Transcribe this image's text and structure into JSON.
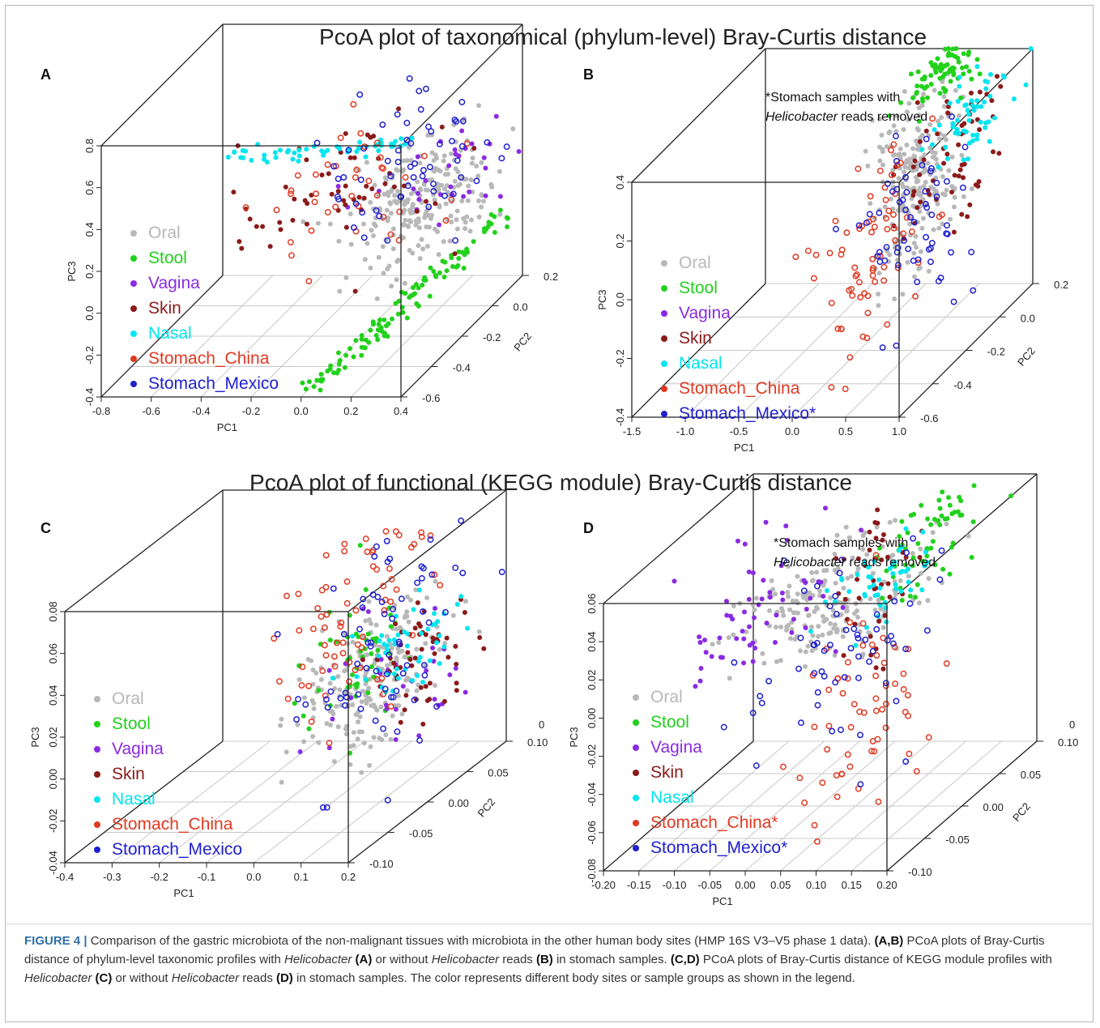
{
  "titles": {
    "top": "PcoA plot of taxonomical (phylum-level) Bray-Curtis distance",
    "bottom": "PcoA plot of functional (KEGG module) Bray-Curtis distance"
  },
  "colors": {
    "Oral": "#b8b8b8",
    "Stool": "#22d11c",
    "Vagina": "#8a2be2",
    "Skin": "#8b1a1a",
    "Nasal": "#00e5ee",
    "Stomach_China": "#e03a22",
    "Stomach_Mexico": "#2020d0",
    "frame": "#222222",
    "grid": "#c8c8c8"
  },
  "caption": {
    "figure_label": "FIGURE 4 |",
    "p1": " Comparison of the gastric microbiota of the non-malignant tissues with microbiota in the other human body sites (HMP 16S V3–V5 phase 1 data). ",
    "p1b": "(A,B)",
    "p2": " PCoA plots of Bray-Curtis distance of phylum-level taxonomic profiles with ",
    "helico1": "Helicobacter",
    "p3": " ",
    "pA": "(A)",
    "p4": " or without ",
    "helico2": "Helicobacter",
    "p5": " reads ",
    "pB": "(B)",
    "p6": " in stomach samples. ",
    "pCD": "(C,D)",
    "p7": " PCoA plots of Bray-Curtis distance of KEGG module profiles with ",
    "helico3": "Helicobacter",
    "p8": " ",
    "pC": "(C)",
    "p9": " or without ",
    "helico4": "Helicobacter",
    "p10": " reads ",
    "pD": "(D)",
    "p11": " in stomach samples. The color represents different body sites or sample groups as shown in the legend."
  },
  "chart_data": [
    {
      "panel": "A",
      "type": "scatter",
      "projection": "3d",
      "xlabel": "PC1",
      "ylabel": "PC2",
      "zlabel": "PC3",
      "x_ticks": [
        "-0.8",
        "-0.6",
        "-0.4",
        "-0.2",
        "0.0",
        "0.2",
        "0.4"
      ],
      "y_ticks": [
        "-0.6",
        "-0.4",
        "-0.2",
        "0.0",
        "0.2"
      ],
      "z_ticks": [
        "-0.4",
        "-0.2",
        "0.0",
        "0.2",
        "0.4",
        "0.6",
        "0.8"
      ],
      "xlim": [
        -0.8,
        0.4
      ],
      "ylim": [
        -0.6,
        0.2
      ],
      "zlim": [
        -0.4,
        0.8
      ],
      "legend": [
        {
          "name": "Oral",
          "marker": "filled"
        },
        {
          "name": "Stool",
          "marker": "filled"
        },
        {
          "name": "Vagina",
          "marker": "filled"
        },
        {
          "name": "Skin",
          "marker": "filled"
        },
        {
          "name": "Nasal",
          "marker": "filled"
        },
        {
          "name": "Stomach_China",
          "marker": "filled"
        },
        {
          "name": "Stomach_Mexico",
          "marker": "filled"
        }
      ],
      "note": "",
      "clusters": [
        {
          "series": "Oral",
          "n": 230,
          "cx": 0.2,
          "cy": -0.15,
          "cz": 0.2,
          "sx": 0.12,
          "sy": 0.15,
          "sz": 0.12,
          "open": false
        },
        {
          "series": "Stool",
          "n": 110,
          "line": [
            [
              0.02,
              -0.6,
              -0.38
            ],
            [
              0.38,
              0.15,
              -0.05
            ]
          ],
          "jitter": 0.02,
          "open": false
        },
        {
          "series": "Vagina",
          "n": 30,
          "cx": 0.25,
          "cy": -0.1,
          "cz": 0.28,
          "sx": 0.12,
          "sy": 0.12,
          "sz": 0.08,
          "open": false
        },
        {
          "series": "Skin",
          "n": 55,
          "cx": -0.1,
          "cy": -0.2,
          "cz": 0.3,
          "sx": 0.18,
          "sy": 0.15,
          "sz": 0.12,
          "open": false
        },
        {
          "series": "Nasal",
          "n": 55,
          "line": [
            [
              -0.6,
              -0.1,
              0.38
            ],
            [
              0.1,
              -0.05,
              0.42
            ]
          ],
          "jitter": 0.015,
          "open": false
        },
        {
          "series": "Stomach_China",
          "n": 40,
          "cx": -0.05,
          "cy": -0.2,
          "cz": 0.3,
          "sx": 0.15,
          "sy": 0.15,
          "sz": 0.15,
          "open": true
        },
        {
          "series": "Stomach_Mexico",
          "n": 60,
          "cx": 0.1,
          "cy": -0.1,
          "cz": 0.35,
          "sx": 0.15,
          "sy": 0.15,
          "sz": 0.15,
          "open": true
        }
      ]
    },
    {
      "panel": "B",
      "type": "scatter",
      "projection": "3d",
      "xlabel": "PC1",
      "ylabel": "PC2",
      "zlabel": "PC3",
      "x_ticks": [
        "-1.5",
        "-1.0",
        "-0.5",
        "0.0",
        "0.5",
        "1.0"
      ],
      "y_ticks": [
        "-0.6",
        "-0.4",
        "-0.2",
        "0.0",
        "0.2"
      ],
      "z_ticks": [
        "-0.4",
        "-0.2",
        "0.0",
        "0.2",
        "0.4"
      ],
      "xlim": [
        -1.5,
        1.0
      ],
      "ylim": [
        -0.6,
        0.2
      ],
      "zlim": [
        -0.4,
        0.4
      ],
      "legend": [
        {
          "name": "Oral",
          "marker": "filled"
        },
        {
          "name": "Stool",
          "marker": "filled"
        },
        {
          "name": "Vagina",
          "marker": "filled"
        },
        {
          "name": "Skin",
          "marker": "filled"
        },
        {
          "name": "Nasal",
          "marker": "filled"
        },
        {
          "name": "Stomach_China",
          "marker": "filled"
        },
        {
          "name": "Stomach_Mexico*",
          "marker": "filled"
        }
      ],
      "note": "*Stomach samples with Helicobacter reads removed",
      "clusters": [
        {
          "series": "Oral",
          "n": 230,
          "cx": 0.35,
          "cy": -0.1,
          "cz": 0.1,
          "sx": 0.12,
          "sy": 0.1,
          "sz": 0.15,
          "open": false
        },
        {
          "series": "Stool",
          "n": 70,
          "cx": 0.3,
          "cy": 0.1,
          "cz": 0.38,
          "sx": 0.12,
          "sy": 0.08,
          "sz": 0.04,
          "open": false
        },
        {
          "series": "Skin",
          "n": 60,
          "cx": 0.7,
          "cy": -0.1,
          "cz": 0.25,
          "sx": 0.2,
          "sy": 0.15,
          "sz": 0.12,
          "open": false
        },
        {
          "series": "Nasal",
          "n": 55,
          "cx": 0.85,
          "cy": -0.05,
          "cz": 0.32,
          "sx": 0.15,
          "sy": 0.1,
          "sz": 0.06,
          "open": false
        },
        {
          "series": "Stomach_China",
          "n": 70,
          "cx": 0.3,
          "cy": -0.3,
          "cz": 0.0,
          "sx": 0.15,
          "sy": 0.15,
          "sz": 0.18,
          "open": true
        },
        {
          "series": "Stomach_Mexico*",
          "n": 60,
          "cx": 0.5,
          "cy": -0.2,
          "cz": 0.05,
          "sx": 0.15,
          "sy": 0.15,
          "sz": 0.18,
          "open": true
        }
      ]
    },
    {
      "panel": "C",
      "type": "scatter",
      "projection": "3d",
      "xlabel": "PC1",
      "ylabel": "PC2",
      "zlabel": "PC3",
      "x_ticks": [
        "-0.4",
        "-0.3",
        "-0.2",
        "-0.1",
        "0.0",
        "0.1",
        "0.2"
      ],
      "y_ticks": [
        "-0.10",
        "-0.05",
        "0.00",
        "0.05",
        "0.10"
      ],
      "z_ticks": [
        "-0.04",
        "-0.02",
        "0.00",
        "0.02",
        "0.04",
        "0.06",
        "0.08"
      ],
      "xlim": [
        -0.4,
        0.2
      ],
      "ylim": [
        -0.1,
        0.1
      ],
      "zlim": [
        -0.04,
        0.08
      ],
      "extra_y_tick": "0",
      "legend": [
        {
          "name": "Oral",
          "marker": "filled"
        },
        {
          "name": "Stool",
          "marker": "filled"
        },
        {
          "name": "Vagina",
          "marker": "filled"
        },
        {
          "name": "Skin",
          "marker": "filled"
        },
        {
          "name": "Nasal",
          "marker": "filled"
        },
        {
          "name": "Stomach_China",
          "marker": "filled"
        },
        {
          "name": "Stomach_Mexico",
          "marker": "filled"
        }
      ],
      "note": "",
      "clusters": [
        {
          "series": "Oral",
          "n": 200,
          "cx": 0.08,
          "cy": 0.0,
          "cz": 0.02,
          "sx": 0.05,
          "sy": 0.04,
          "sz": 0.015,
          "open": false
        },
        {
          "series": "Stool",
          "n": 50,
          "cx": 0.05,
          "cy": 0.0,
          "cz": 0.03,
          "sx": 0.04,
          "sy": 0.03,
          "sz": 0.015,
          "open": false
        },
        {
          "series": "Vagina",
          "n": 30,
          "cx": 0.14,
          "cy": 0.0,
          "cz": 0.015,
          "sx": 0.04,
          "sy": 0.05,
          "sz": 0.02,
          "open": false
        },
        {
          "series": "Skin",
          "n": 55,
          "cx": 0.15,
          "cy": 0.02,
          "cz": 0.02,
          "sx": 0.03,
          "sy": 0.03,
          "sz": 0.015,
          "open": false
        },
        {
          "series": "Nasal",
          "n": 50,
          "cx": 0.12,
          "cy": 0.02,
          "cz": 0.03,
          "sx": 0.03,
          "sy": 0.03,
          "sz": 0.01,
          "open": false
        },
        {
          "series": "Stomach_China",
          "n": 70,
          "cx": 0.05,
          "cy": 0.0,
          "cz": 0.045,
          "sx": 0.05,
          "sy": 0.05,
          "sz": 0.025,
          "open": true
        },
        {
          "series": "Stomach_Mexico",
          "n": 70,
          "cx": 0.1,
          "cy": 0.0,
          "cz": 0.04,
          "sx": 0.05,
          "sy": 0.05,
          "sz": 0.025,
          "open": true
        }
      ]
    },
    {
      "panel": "D",
      "type": "scatter",
      "projection": "3d",
      "xlabel": "PC1",
      "ylabel": "PC2",
      "zlabel": "PC3",
      "x_ticks": [
        "-0.20",
        "-0.15",
        "-0.10",
        "-0.05",
        "0.00",
        "0.05",
        "0.10",
        "0.15",
        "0.20"
      ],
      "y_ticks": [
        "-0.10",
        "-0.05",
        "0.00",
        "0.05",
        "0.10"
      ],
      "z_ticks": [
        "-0.08",
        "-0.06",
        "-0.04",
        "-0.02",
        "0.00",
        "0.02",
        "0.04",
        "0.06"
      ],
      "xlim": [
        -0.2,
        0.2
      ],
      "ylim": [
        -0.1,
        0.1
      ],
      "zlim": [
        -0.08,
        0.06
      ],
      "extra_y_tick": "0",
      "legend": [
        {
          "name": "Oral",
          "marker": "filled"
        },
        {
          "name": "Stool",
          "marker": "filled"
        },
        {
          "name": "Vagina",
          "marker": "filled"
        },
        {
          "name": "Skin",
          "marker": "filled"
        },
        {
          "name": "Nasal",
          "marker": "filled"
        },
        {
          "name": "Stomach_China*",
          "marker": "filled"
        },
        {
          "name": "Stomach_Mexico*",
          "marker": "filled"
        }
      ],
      "note": "*Stomach samples with Helicobacter reads removed",
      "clusters": [
        {
          "series": "Oral",
          "n": 200,
          "cx": 0.0,
          "cy": 0.02,
          "cz": 0.02,
          "sx": 0.05,
          "sy": 0.04,
          "sz": 0.012,
          "open": false
        },
        {
          "series": "Stool",
          "n": 60,
          "cx": 0.1,
          "cy": 0.05,
          "cz": 0.04,
          "sx": 0.03,
          "sy": 0.03,
          "sz": 0.012,
          "open": false
        },
        {
          "series": "Vagina",
          "n": 60,
          "cx": -0.1,
          "cy": 0.0,
          "cz": 0.02,
          "sx": 0.04,
          "sy": 0.04,
          "sz": 0.015,
          "open": false
        },
        {
          "series": "Skin",
          "n": 40,
          "cx": 0.05,
          "cy": 0.03,
          "cz": 0.035,
          "sx": 0.02,
          "sy": 0.02,
          "sz": 0.02,
          "open": false
        },
        {
          "series": "Nasal",
          "n": 50,
          "cx": 0.06,
          "cy": 0.02,
          "cz": 0.03,
          "sx": 0.03,
          "sy": 0.03,
          "sz": 0.01,
          "open": false
        },
        {
          "series": "Stomach_China*",
          "n": 60,
          "cx": 0.05,
          "cy": 0.0,
          "cz": -0.03,
          "sx": 0.03,
          "sy": 0.04,
          "sz": 0.025,
          "open": true
        },
        {
          "series": "Stomach_Mexico*",
          "n": 60,
          "cx": 0.03,
          "cy": 0.0,
          "cz": 0.0,
          "sx": 0.05,
          "sy": 0.05,
          "sz": 0.025,
          "open": true
        }
      ]
    }
  ]
}
